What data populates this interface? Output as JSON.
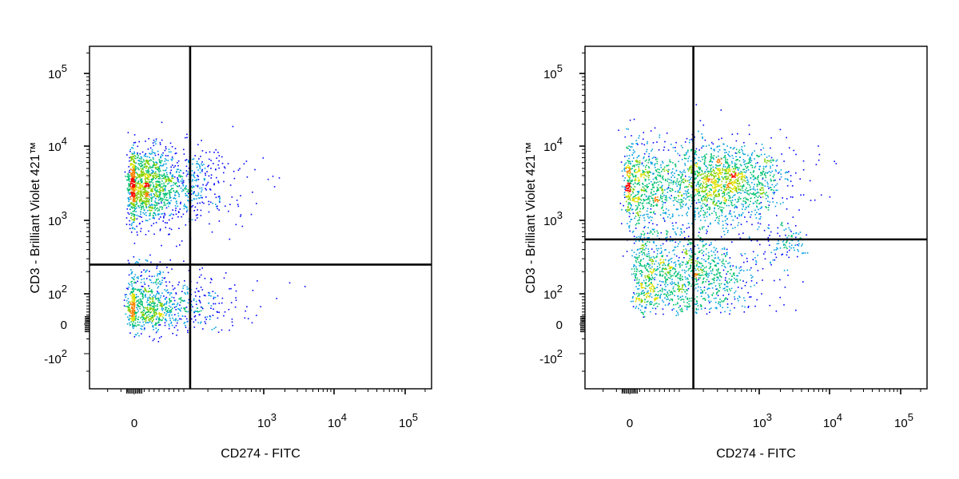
{
  "chart_data": [
    {
      "type": "scatter",
      "xlabel": "CD274 - FITC",
      "ylabel": "CD3 - Brilliant Violet 421™",
      "x_scale": "biexponential",
      "y_scale": "biexponential",
      "x_ticks": [
        "0",
        "10^3",
        "10^4",
        "10^5"
      ],
      "y_ticks": [
        "10^5",
        "10^4",
        "10^3",
        "10^2",
        "0",
        "-10^2"
      ],
      "quadrant_gate": {
        "x": 120,
        "y": 250
      },
      "colormap": [
        "#0000ff",
        "#00c8c8",
        "#00d000",
        "#e0e000",
        "#ff0000"
      ],
      "populations": [
        {
          "x_center": 25,
          "x_spread": 0.6,
          "y_center": 3000,
          "y_spread": 0.25,
          "count": 1500
        },
        {
          "x_center": 25,
          "x_spread": 0.6,
          "y_center": 55,
          "y_spread": 0.3,
          "count": 900
        }
      ]
    },
    {
      "type": "scatter",
      "xlabel": "CD274 - FITC",
      "ylabel": "CD3 - Brilliant Violet 421™",
      "x_scale": "biexponential",
      "y_scale": "biexponential",
      "x_ticks": [
        "0",
        "10^3",
        "10^4",
        "10^5"
      ],
      "y_ticks": [
        "10^5",
        "10^4",
        "10^3",
        "10^2",
        "0",
        "-10^2"
      ],
      "quadrant_gate": {
        "x": 150,
        "y": 550
      },
      "colormap": [
        "#0000ff",
        "#00c8c8",
        "#00d000",
        "#e0e000",
        "#ff0000"
      ],
      "populations": [
        {
          "x_center": 55,
          "x_spread": 0.9,
          "y_center": 2800,
          "y_spread": 0.3,
          "count": 1100
        },
        {
          "x_center": 350,
          "x_spread": 0.35,
          "y_center": 3500,
          "y_spread": 0.25,
          "count": 1000
        },
        {
          "x_center": 100,
          "x_spread": 0.5,
          "y_center": 180,
          "y_spread": 0.3,
          "count": 1200
        },
        {
          "x_center": 2500,
          "x_spread": 0.15,
          "y_center": 550,
          "y_spread": 0.12,
          "count": 80
        }
      ]
    }
  ]
}
